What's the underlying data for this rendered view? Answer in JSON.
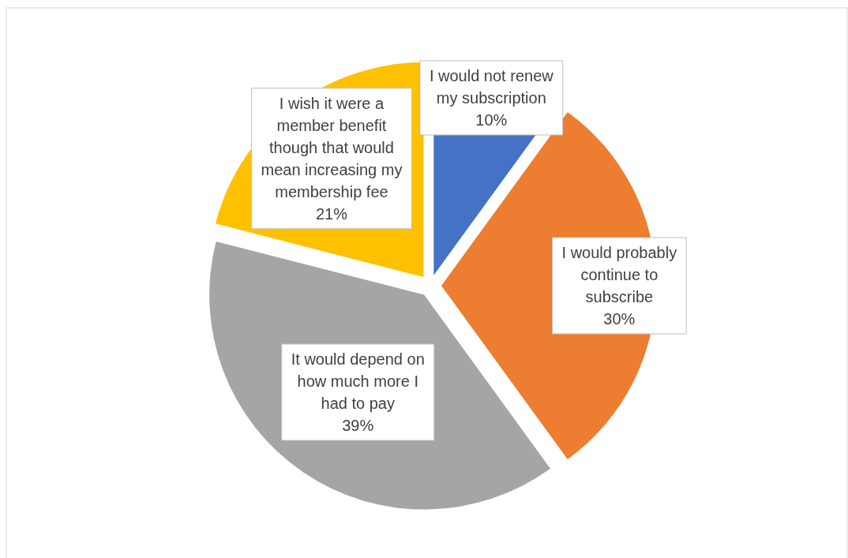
{
  "chart_data": {
    "type": "pie",
    "categories": [
      "I would not renew my subscription",
      "I would probably continue to subscribe",
      "It would depend on how much more I had to pay",
      "I wish it were a member benefit though that would mean increasing my membership fee"
    ],
    "values": [
      10,
      30,
      39,
      21
    ],
    "colors": [
      "#4472c4",
      "#ed7d31",
      "#a5a5a5",
      "#ffc000"
    ],
    "value_labels": [
      "10%",
      "30%",
      "39%",
      "21%"
    ]
  }
}
